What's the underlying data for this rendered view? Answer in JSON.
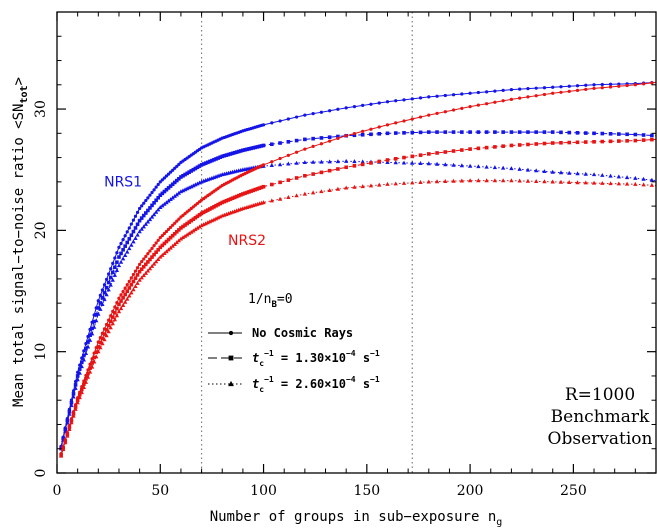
{
  "chart_data": {
    "type": "line",
    "xlabel": "Number of groups in sub−exposure n",
    "xlabel_sub": "g",
    "ylabel": "Mean total signal−to−noise ratio <SN",
    "ylabel_sub": "tot",
    "ylabel_close": ">",
    "xlim": [
      0,
      290
    ],
    "ylim": [
      0,
      38
    ],
    "xticks": [
      0,
      50,
      100,
      150,
      200,
      250
    ],
    "yticks": [
      0,
      10,
      20,
      30
    ],
    "vlines": [
      70,
      172
    ],
    "grid": false,
    "colors": {
      "NRS1": "#1414e6",
      "NRS2": "#e61414",
      "axis": "#000000",
      "vline": "#808080"
    },
    "series_labels": [
      {
        "text": "NRS1",
        "x": 32,
        "y": 23.6,
        "color": "#1414e6"
      },
      {
        "text": "NRS2",
        "x": 92,
        "y": 18.8,
        "color": "#e61414"
      }
    ],
    "legend_title": {
      "prefix": "1/n",
      "sub": "B",
      "suffix": "=0"
    },
    "legend": [
      {
        "label": "No Cosmic Rays",
        "line": "solid",
        "marker": "circle"
      },
      {
        "label_prefix": "t",
        "label_sub": "c",
        "label_sup": "−1",
        "label_rest": " = 1.30×10",
        "label_exp": "−4",
        "label_unit": " s",
        "label_unit_sup": "−1",
        "line": "dashed",
        "marker": "square"
      },
      {
        "label_prefix": "t",
        "label_sub": "c",
        "label_sup": "−1",
        "label_rest": " = 2.60×10",
        "label_exp": "−4",
        "label_unit": " s",
        "label_unit_sup": "−1",
        "line": "dotted",
        "marker": "triangle"
      }
    ],
    "annotation": [
      "R=1000",
      "Benchmark",
      "Observation"
    ],
    "series": [
      {
        "detector": "NRS1",
        "case": "No Cosmic Rays",
        "color": "#1414e6",
        "marker": "circle",
        "line": "solid",
        "x": [
          2,
          10,
          20,
          30,
          40,
          50,
          60,
          70,
          80,
          90,
          100,
          120,
          140,
          160,
          180,
          200,
          220,
          240,
          260,
          280,
          290
        ],
        "y": [
          2.2,
          8.3,
          14.2,
          18.6,
          21.8,
          24.0,
          25.6,
          26.8,
          27.6,
          28.2,
          28.7,
          29.5,
          30.1,
          30.6,
          31.0,
          31.3,
          31.6,
          31.8,
          32.0,
          32.1,
          32.2
        ]
      },
      {
        "detector": "NRS1",
        "case": "t_c^-1 = 1.30e-4 s^-1",
        "color": "#1414e6",
        "marker": "square",
        "line": "dashed",
        "x": [
          2,
          10,
          20,
          30,
          40,
          50,
          60,
          70,
          80,
          90,
          100,
          120,
          140,
          160,
          180,
          200,
          220,
          240,
          260,
          280,
          290
        ],
        "y": [
          2.1,
          8.0,
          13.6,
          17.8,
          20.8,
          22.9,
          24.4,
          25.4,
          26.1,
          26.6,
          27.0,
          27.5,
          27.8,
          28.0,
          28.1,
          28.1,
          28.1,
          28.1,
          28.0,
          27.9,
          27.8
        ]
      },
      {
        "detector": "NRS1",
        "case": "t_c^-1 = 2.60e-4 s^-1",
        "color": "#1414e6",
        "marker": "triangle",
        "line": "dotted",
        "x": [
          2,
          10,
          20,
          30,
          40,
          50,
          60,
          70,
          80,
          90,
          100,
          120,
          140,
          160,
          180,
          200,
          220,
          240,
          260,
          280,
          290
        ],
        "y": [
          2.0,
          7.7,
          13.1,
          17.1,
          19.9,
          21.9,
          23.2,
          24.0,
          24.6,
          25.0,
          25.3,
          25.6,
          25.7,
          25.6,
          25.5,
          25.3,
          25.1,
          24.8,
          24.6,
          24.3,
          24.1
        ]
      },
      {
        "detector": "NRS2",
        "case": "No Cosmic Rays",
        "color": "#e61414",
        "marker": "circle",
        "line": "solid",
        "x": [
          2,
          10,
          20,
          30,
          40,
          50,
          60,
          70,
          80,
          90,
          100,
          120,
          140,
          160,
          180,
          200,
          220,
          240,
          260,
          280,
          290
        ],
        "y": [
          1.6,
          6.2,
          10.8,
          14.4,
          17.2,
          19.4,
          21.1,
          22.5,
          23.7,
          24.6,
          25.4,
          26.7,
          27.8,
          28.7,
          29.5,
          30.2,
          30.8,
          31.3,
          31.7,
          32.0,
          32.2
        ]
      },
      {
        "detector": "NRS2",
        "case": "t_c^-1 = 1.30e-4 s^-1",
        "color": "#e61414",
        "marker": "square",
        "line": "dashed",
        "x": [
          2,
          10,
          20,
          30,
          40,
          50,
          60,
          70,
          80,
          90,
          100,
          120,
          140,
          160,
          180,
          200,
          220,
          240,
          260,
          280,
          290
        ],
        "y": [
          1.5,
          6.0,
          10.4,
          13.9,
          16.6,
          18.6,
          20.2,
          21.4,
          22.3,
          23.0,
          23.6,
          24.5,
          25.2,
          25.8,
          26.3,
          26.7,
          27.0,
          27.2,
          27.3,
          27.4,
          27.5
        ]
      },
      {
        "detector": "NRS2",
        "case": "t_c^-1 = 2.60e-4 s^-1",
        "color": "#e61414",
        "marker": "triangle",
        "line": "dotted",
        "x": [
          2,
          10,
          20,
          30,
          40,
          50,
          60,
          70,
          80,
          90,
          100,
          120,
          140,
          160,
          180,
          200,
          220,
          240,
          260,
          280,
          290
        ],
        "y": [
          1.4,
          5.8,
          10.0,
          13.3,
          15.9,
          17.8,
          19.3,
          20.4,
          21.2,
          21.8,
          22.3,
          23.0,
          23.5,
          23.8,
          24.0,
          24.1,
          24.1,
          24.0,
          23.9,
          23.8,
          23.7
        ]
      }
    ]
  }
}
